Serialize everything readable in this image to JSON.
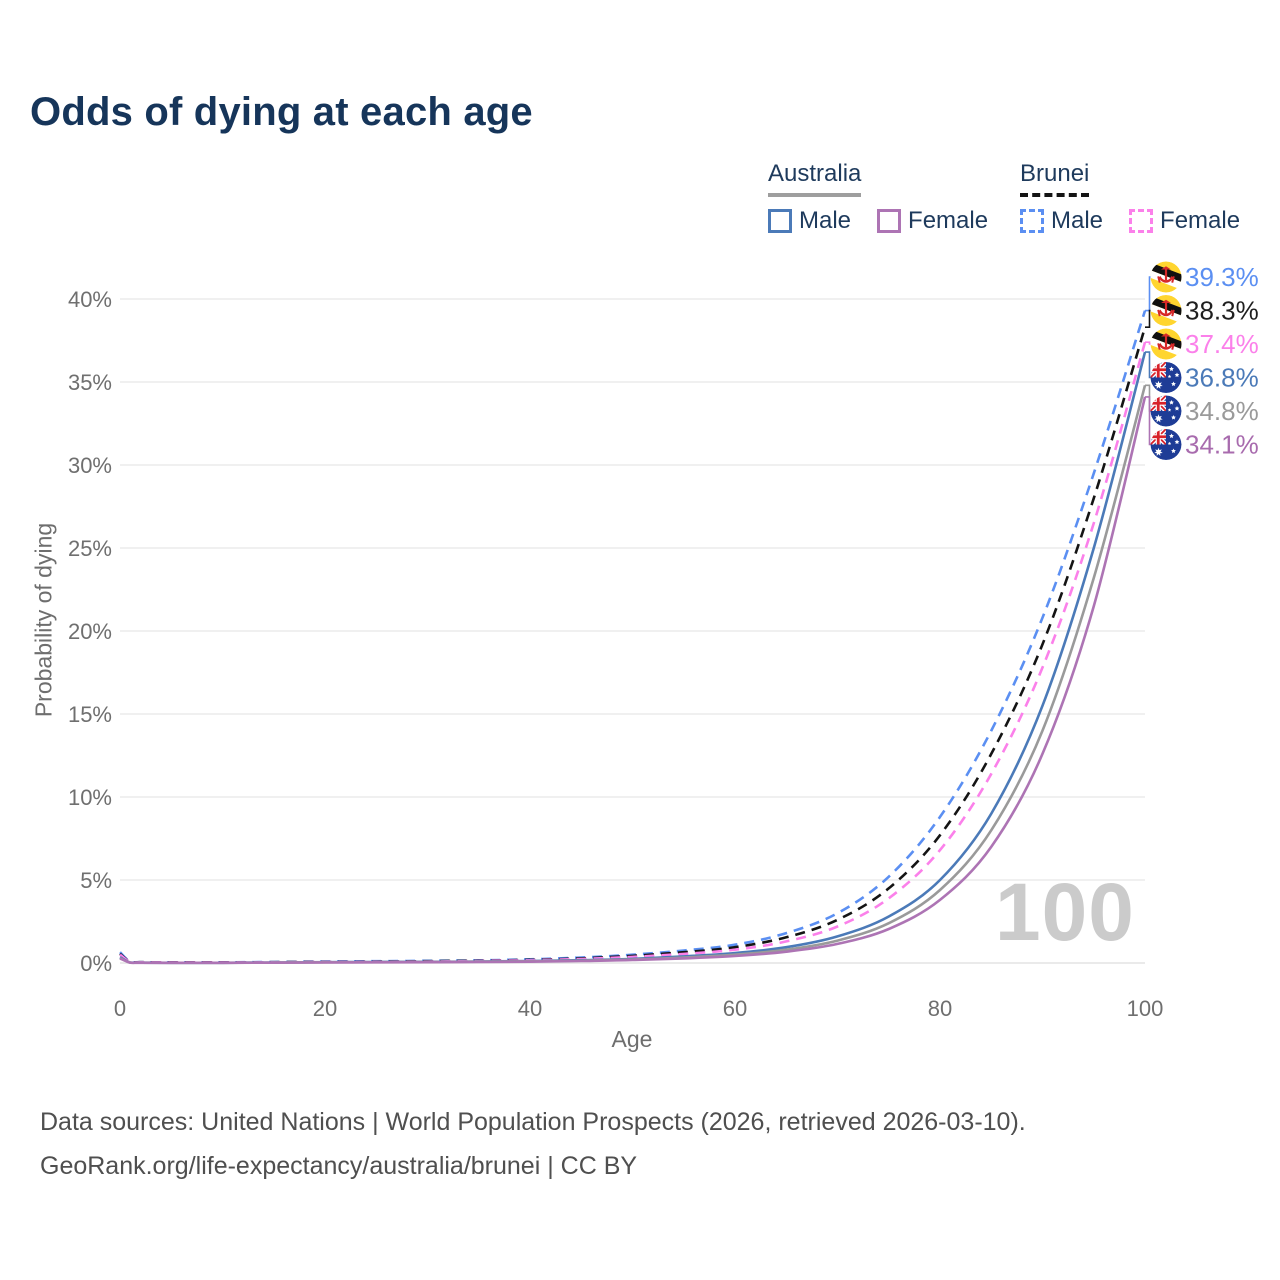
{
  "title": "Odds of dying at each age",
  "legend": {
    "groups": [
      {
        "label": "Australia",
        "line_style": "solid",
        "underline_color": "#9e9e9e",
        "items": [
          {
            "label": "Male",
            "color": "#4b7ab8"
          },
          {
            "label": "Female",
            "color": "#ad74b4"
          }
        ]
      },
      {
        "label": "Brunei",
        "line_style": "dashed",
        "underline_color": "#141414",
        "items": [
          {
            "label": "Male",
            "color": "#5b8ff2"
          },
          {
            "label": "Female",
            "color": "#fb80ea"
          }
        ]
      }
    ]
  },
  "watermark": "100",
  "footer": {
    "line1": "Data sources: United Nations | World Population Prospects (2026, retrieved 2026-03-10).",
    "line2": "GeoRank.org/life-expectancy/australia/brunei | CC BY"
  },
  "chart_data": {
    "type": "line",
    "title": "Odds of dying at each age",
    "xlabel": "Age",
    "ylabel": "Probability of dying",
    "x_ticks": [
      0,
      20,
      40,
      60,
      80,
      100
    ],
    "y_ticks_percent": [
      0,
      5,
      10,
      15,
      20,
      25,
      30,
      35,
      40
    ],
    "xlim": [
      0,
      100
    ],
    "ylim_percent": [
      0,
      42
    ],
    "grid": "horizontal-only",
    "legend_position": "top-right",
    "ages": [
      0,
      1,
      2,
      5,
      10,
      15,
      20,
      25,
      30,
      35,
      40,
      45,
      50,
      55,
      60,
      65,
      70,
      75,
      80,
      85,
      90,
      95,
      100
    ],
    "series": [
      {
        "name": "Brunei — Male",
        "country": "Brunei",
        "sex": "male",
        "style": "dashed",
        "color": "#5b8ff2",
        "label_color": "#5b8ff2",
        "flag": "brunei",
        "end_value_percent": 39.3,
        "end_label": "39.3%",
        "values_percent": [
          0.65,
          0.07,
          0.05,
          0.04,
          0.04,
          0.06,
          0.09,
          0.11,
          0.13,
          0.16,
          0.22,
          0.33,
          0.5,
          0.75,
          1.1,
          1.8,
          3.0,
          5.2,
          8.8,
          14.0,
          20.8,
          29.5,
          39.3
        ]
      },
      {
        "name": "Brunei — Both sexes",
        "country": "Brunei",
        "sex": "both",
        "style": "dashed",
        "color": "#141414",
        "label_color": "#1f1f1f",
        "flag": "brunei",
        "end_value_percent": 38.3,
        "end_label": "38.3%",
        "values_percent": [
          0.55,
          0.06,
          0.05,
          0.035,
          0.035,
          0.05,
          0.07,
          0.09,
          0.11,
          0.14,
          0.19,
          0.28,
          0.43,
          0.65,
          0.95,
          1.55,
          2.6,
          4.5,
          7.7,
          12.6,
          19.2,
          28.0,
          38.3
        ]
      },
      {
        "name": "Brunei — Female",
        "country": "Brunei",
        "sex": "female",
        "style": "dashed",
        "color": "#fb80ea",
        "label_color": "#fb80ea",
        "flag": "brunei",
        "end_value_percent": 37.4,
        "end_label": "37.4%",
        "values_percent": [
          0.5,
          0.05,
          0.04,
          0.03,
          0.03,
          0.04,
          0.06,
          0.08,
          0.09,
          0.12,
          0.17,
          0.24,
          0.37,
          0.55,
          0.8,
          1.3,
          2.2,
          3.9,
          6.8,
          11.4,
          17.8,
          26.5,
          37.4
        ]
      },
      {
        "name": "Australia — Male",
        "country": "Australia",
        "sex": "male",
        "style": "solid",
        "color": "#4b7ab8",
        "label_color": "#4b7ab8",
        "flag": "australia",
        "end_value_percent": 36.8,
        "end_label": "36.8%",
        "values_percent": [
          0.35,
          0.03,
          0.02,
          0.015,
          0.015,
          0.03,
          0.05,
          0.06,
          0.07,
          0.09,
          0.12,
          0.17,
          0.25,
          0.4,
          0.6,
          0.95,
          1.6,
          2.8,
          5.0,
          9.0,
          15.5,
          25.0,
          36.8
        ]
      },
      {
        "name": "Australia — Both sexes",
        "country": "Australia",
        "sex": "both",
        "style": "solid",
        "color": "#9a9a9a",
        "label_color": "#9a9a9a",
        "flag": "australia",
        "end_value_percent": 34.8,
        "end_label": "34.8%",
        "values_percent": [
          0.3,
          0.025,
          0.02,
          0.012,
          0.012,
          0.025,
          0.04,
          0.05,
          0.06,
          0.08,
          0.1,
          0.14,
          0.21,
          0.33,
          0.5,
          0.8,
          1.35,
          2.4,
          4.4,
          8.0,
          14.0,
          23.2,
          34.8
        ]
      },
      {
        "name": "Australia — Female",
        "country": "Australia",
        "sex": "female",
        "style": "solid",
        "color": "#ad74b4",
        "label_color": "#a86bae",
        "flag": "australia",
        "end_value_percent": 34.1,
        "end_label": "34.1%",
        "values_percent": [
          0.28,
          0.02,
          0.015,
          0.01,
          0.01,
          0.02,
          0.03,
          0.04,
          0.05,
          0.06,
          0.08,
          0.12,
          0.18,
          0.28,
          0.42,
          0.68,
          1.15,
          2.05,
          3.8,
          7.0,
          12.6,
          21.5,
          34.1
        ]
      }
    ]
  }
}
